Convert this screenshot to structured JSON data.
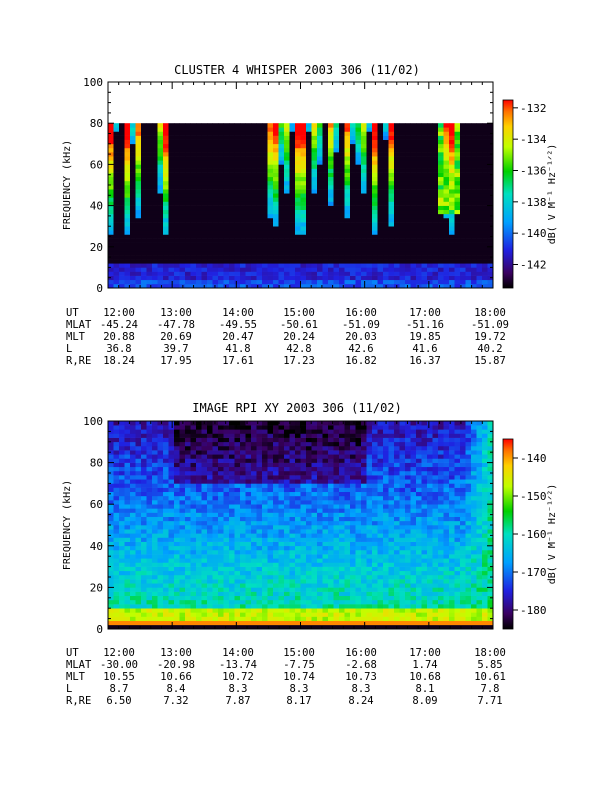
{
  "chart_data": [
    {
      "type": "heatmap",
      "title": "CLUSTER 4 WHISPER 2003 306 (11/02)",
      "ylabel": "FREQUENCY (kHz)",
      "ylim": [
        0,
        100
      ],
      "y_ticks": [
        "0",
        "20",
        "40",
        "60",
        "80",
        "100"
      ],
      "data_ylim": [
        0,
        80
      ],
      "x_ticks": [
        "12:00",
        "13:00",
        "14:00",
        "15:00",
        "16:00",
        "17:00",
        "18:00"
      ],
      "colorbar": {
        "label": "dB( V M⁻¹ Hz⁻¹ᐟ²)",
        "range": [
          -143.5,
          -131.5
        ],
        "ticks": [
          "-132",
          "-134",
          "-136",
          "-138",
          "-140",
          "-142"
        ],
        "tick_values": [
          -132,
          -134,
          -136,
          -138,
          -140,
          -142
        ]
      },
      "emission_times": [
        12.05,
        12.3,
        12.45,
        12.85,
        12.9,
        14.55,
        14.6,
        14.75,
        14.95,
        15.05,
        15.25,
        15.5,
        15.75,
        15.95,
        16.15,
        16.4,
        17.25,
        17.35
      ],
      "ephemeris": {
        "labels": [
          "UT",
          "MLAT",
          "MLT",
          "L",
          "R,RE"
        ],
        "rows": [
          [
            "12:00",
            "13:00",
            "14:00",
            "15:00",
            "16:00",
            "17:00",
            "18:00"
          ],
          [
            "-45.24",
            "-47.78",
            "-49.55",
            "-50.61",
            "-51.09",
            "-51.16",
            "-51.09"
          ],
          [
            "20.88",
            "20.69",
            "20.47",
            "20.24",
            "20.03",
            "19.85",
            "19.72"
          ],
          [
            "36.8",
            "39.7",
            "41.8",
            "42.8",
            "42.6",
            "41.6",
            "40.2"
          ],
          [
            "18.24",
            "17.95",
            "17.61",
            "17.23",
            "16.82",
            "16.37",
            "15.87"
          ]
        ]
      }
    },
    {
      "type": "heatmap",
      "title": "IMAGE RPI XY 2003 306 (11/02)",
      "ylabel": "FREQUENCY (kHz)",
      "ylim": [
        0,
        100
      ],
      "y_ticks": [
        "0",
        "20",
        "40",
        "60",
        "80",
        "100"
      ],
      "data_ylim": [
        0,
        100
      ],
      "x_ticks": [
        "12:00",
        "13:00",
        "14:00",
        "15:00",
        "16:00",
        "17:00",
        "18:00"
      ],
      "colorbar": {
        "label": "dB( V M⁻¹ Hz⁻¹ᐟ²)",
        "range": [
          -185,
          -135
        ],
        "ticks": [
          "-140",
          "-150",
          "-160",
          "-170",
          "-180"
        ],
        "tick_values": [
          -140,
          -150,
          -160,
          -170,
          -180
        ]
      },
      "ephemeris": {
        "labels": [
          "UT",
          "MLAT",
          "MLT",
          "L",
          "R,RE"
        ],
        "rows": [
          [
            "12:00",
            "13:00",
            "14:00",
            "15:00",
            "16:00",
            "17:00",
            "18:00"
          ],
          [
            "-30.00",
            "-20.98",
            "-13.74",
            "-7.75",
            "-2.68",
            "1.74",
            "5.85"
          ],
          [
            "10.55",
            "10.66",
            "10.72",
            "10.74",
            "10.73",
            "10.68",
            "10.61"
          ],
          [
            "8.7",
            "8.4",
            "8.3",
            "8.3",
            "8.3",
            "8.1",
            "7.8"
          ],
          [
            "6.50",
            "7.32",
            "7.87",
            "8.17",
            "8.24",
            "8.09",
            "7.71"
          ]
        ]
      }
    }
  ]
}
